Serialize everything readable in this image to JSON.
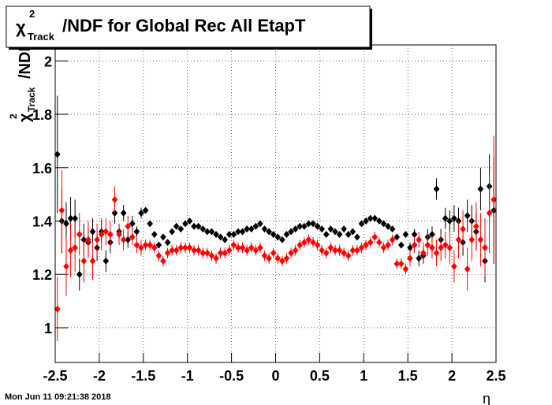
{
  "chart_data": {
    "type": "scatter",
    "title": {
      "symbol": "χ",
      "sup": "2",
      "sub": "Track",
      "text": "/NDF for Global Rec All EtapT"
    },
    "y_label": {
      "symbol": "χ",
      "sup": "2",
      "sub": "Track",
      "text": "/NDF"
    },
    "x_label": "η",
    "timestamp": "Mon Jun 11 09:21:38 2018",
    "xlim": [
      -2.5,
      2.5
    ],
    "ylim": [
      0.87,
      2.06
    ],
    "xticks": [
      -2.5,
      -2,
      -1.5,
      -1,
      -0.5,
      0,
      0.5,
      1,
      1.5,
      2,
      2.5
    ],
    "yticks": [
      1,
      1.2,
      1.4,
      1.6,
      1.8,
      2
    ],
    "grid": true,
    "x": [
      -2.475,
      -2.425,
      -2.375,
      -2.325,
      -2.275,
      -2.225,
      -2.175,
      -2.125,
      -2.075,
      -2.025,
      -1.975,
      -1.925,
      -1.875,
      -1.825,
      -1.775,
      -1.725,
      -1.675,
      -1.625,
      -1.575,
      -1.525,
      -1.475,
      -1.425,
      -1.375,
      -1.325,
      -1.275,
      -1.225,
      -1.175,
      -1.125,
      -1.075,
      -1.025,
      -0.975,
      -0.925,
      -0.875,
      -0.825,
      -0.775,
      -0.725,
      -0.675,
      -0.625,
      -0.575,
      -0.525,
      -0.475,
      -0.425,
      -0.375,
      -0.325,
      -0.275,
      -0.225,
      -0.175,
      -0.125,
      -0.075,
      -0.025,
      0.025,
      0.075,
      0.125,
      0.175,
      0.225,
      0.275,
      0.325,
      0.375,
      0.425,
      0.475,
      0.525,
      0.575,
      0.625,
      0.675,
      0.725,
      0.775,
      0.825,
      0.875,
      0.925,
      0.975,
      1.025,
      1.075,
      1.125,
      1.175,
      1.225,
      1.275,
      1.325,
      1.375,
      1.425,
      1.475,
      1.525,
      1.575,
      1.625,
      1.675,
      1.725,
      1.775,
      1.825,
      1.875,
      1.925,
      1.975,
      2.025,
      2.075,
      2.125,
      2.175,
      2.225,
      2.275,
      2.325,
      2.375,
      2.425,
      2.475
    ],
    "series": [
      {
        "color": "#000000",
        "values": [
          1.65,
          1.4,
          1.39,
          1.41,
          1.41,
          1.2,
          1.33,
          1.32,
          1.36,
          1.3,
          1.36,
          1.25,
          1.32,
          1.43,
          1.36,
          1.43,
          1.33,
          1.39,
          1.36,
          1.43,
          1.44,
          1.39,
          1.35,
          1.31,
          1.34,
          1.32,
          1.36,
          1.38,
          1.37,
          1.39,
          1.4,
          1.38,
          1.38,
          1.37,
          1.36,
          1.36,
          1.35,
          1.34,
          1.33,
          1.35,
          1.35,
          1.36,
          1.36,
          1.37,
          1.37,
          1.38,
          1.39,
          1.37,
          1.36,
          1.35,
          1.34,
          1.33,
          1.35,
          1.36,
          1.37,
          1.38,
          1.38,
          1.39,
          1.39,
          1.38,
          1.37,
          1.35,
          1.37,
          1.36,
          1.35,
          1.37,
          1.35,
          1.36,
          1.34,
          1.39,
          1.4,
          1.41,
          1.41,
          1.4,
          1.39,
          1.38,
          1.37,
          1.34,
          1.31,
          1.35,
          1.3,
          1.35,
          1.26,
          1.27,
          1.34,
          1.35,
          1.52,
          1.33,
          1.41,
          1.4,
          1.41,
          1.4,
          1.32,
          1.42,
          1.4,
          1.36,
          1.52,
          1.25,
          1.53,
          1.44
        ],
        "errors": [
          0.22,
          0.12,
          0.08,
          0.08,
          0.07,
          0.06,
          0.06,
          0.05,
          0.05,
          0.05,
          0.04,
          0.04,
          0.04,
          0.04,
          0.03,
          0.03,
          0.03,
          0.03,
          0.02,
          0.02,
          0.01,
          0.01,
          0.01,
          0.01,
          0.01,
          0.01,
          0.01,
          0.01,
          0.01,
          0.01,
          0.01,
          0.01,
          0.01,
          0.01,
          0.01,
          0.01,
          0.01,
          0.01,
          0.01,
          0.01,
          0.01,
          0.01,
          0.01,
          0.01,
          0.01,
          0.01,
          0.01,
          0.01,
          0.01,
          0.01,
          0.01,
          0.01,
          0.01,
          0.01,
          0.01,
          0.01,
          0.01,
          0.01,
          0.01,
          0.01,
          0.01,
          0.01,
          0.01,
          0.01,
          0.01,
          0.01,
          0.01,
          0.01,
          0.01,
          0.01,
          0.01,
          0.01,
          0.01,
          0.01,
          0.01,
          0.01,
          0.01,
          0.01,
          0.01,
          0.01,
          0.02,
          0.02,
          0.03,
          0.03,
          0.03,
          0.03,
          0.04,
          0.04,
          0.04,
          0.04,
          0.05,
          0.05,
          0.05,
          0.06,
          0.06,
          0.07,
          0.08,
          0.08,
          0.12,
          0.2
        ]
      },
      {
        "color": "#ff0000",
        "values": [
          1.07,
          1.44,
          1.23,
          1.29,
          1.3,
          1.35,
          1.25,
          1.33,
          1.25,
          1.33,
          1.35,
          1.36,
          1.35,
          1.48,
          1.35,
          1.33,
          1.38,
          1.34,
          1.31,
          1.3,
          1.31,
          1.31,
          1.3,
          1.27,
          1.25,
          1.28,
          1.29,
          1.29,
          1.3,
          1.3,
          1.3,
          1.29,
          1.29,
          1.28,
          1.28,
          1.27,
          1.26,
          1.28,
          1.28,
          1.29,
          1.31,
          1.3,
          1.3,
          1.29,
          1.3,
          1.29,
          1.3,
          1.27,
          1.26,
          1.28,
          1.26,
          1.25,
          1.26,
          1.28,
          1.29,
          1.31,
          1.32,
          1.33,
          1.32,
          1.31,
          1.29,
          1.28,
          1.3,
          1.29,
          1.29,
          1.28,
          1.27,
          1.29,
          1.29,
          1.3,
          1.31,
          1.32,
          1.34,
          1.32,
          1.3,
          1.31,
          1.33,
          1.24,
          1.24,
          1.22,
          1.26,
          1.31,
          1.33,
          1.28,
          1.31,
          1.3,
          1.28,
          1.3,
          1.31,
          1.3,
          1.23,
          1.33,
          1.37,
          1.22,
          1.33,
          1.38,
          1.33,
          1.3,
          1.43,
          1.48
        ],
        "errors": [
          0.12,
          0.15,
          0.11,
          0.1,
          0.09,
          0.08,
          0.08,
          0.07,
          0.07,
          0.06,
          0.06,
          0.05,
          0.05,
          0.05,
          0.04,
          0.04,
          0.04,
          0.03,
          0.03,
          0.03,
          0.02,
          0.02,
          0.02,
          0.02,
          0.02,
          0.02,
          0.02,
          0.02,
          0.02,
          0.02,
          0.02,
          0.02,
          0.02,
          0.02,
          0.02,
          0.02,
          0.02,
          0.02,
          0.02,
          0.02,
          0.02,
          0.02,
          0.02,
          0.02,
          0.02,
          0.02,
          0.02,
          0.02,
          0.02,
          0.02,
          0.02,
          0.02,
          0.02,
          0.02,
          0.02,
          0.02,
          0.02,
          0.02,
          0.02,
          0.02,
          0.02,
          0.02,
          0.02,
          0.02,
          0.02,
          0.02,
          0.02,
          0.02,
          0.02,
          0.02,
          0.02,
          0.02,
          0.02,
          0.02,
          0.02,
          0.02,
          0.02,
          0.02,
          0.02,
          0.02,
          0.03,
          0.03,
          0.03,
          0.04,
          0.04,
          0.04,
          0.05,
          0.05,
          0.05,
          0.06,
          0.06,
          0.07,
          0.07,
          0.08,
          0.08,
          0.09,
          0.1,
          0.11,
          0.15,
          0.24
        ]
      }
    ]
  }
}
